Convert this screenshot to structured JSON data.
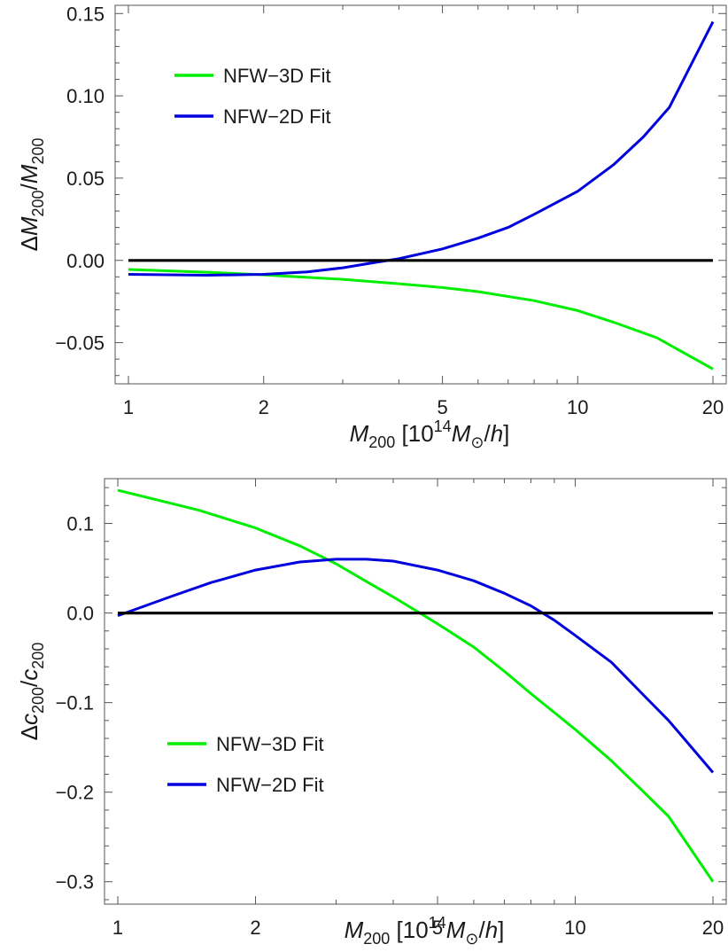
{
  "chart_data": [
    {
      "type": "line",
      "x_scale": "log",
      "xlim": [
        1,
        20
      ],
      "ylim": [
        -0.075,
        0.155
      ],
      "x_ticks": [
        1,
        2,
        5,
        10,
        20
      ],
      "x_tick_labels": [
        "1",
        "2",
        "5",
        "10",
        "20"
      ],
      "y_ticks": [
        -0.05,
        0.0,
        0.05,
        0.1,
        0.15
      ],
      "y_tick_labels": [
        "−0.05",
        "0.00",
        "0.05",
        "0.10",
        "0.15"
      ],
      "xlabel": {
        "main": "M",
        "sub": "200",
        "open": " [10",
        "sup": "14",
        "unit_main": "M",
        "unit_sub": "⊙",
        "tail": "/h]"
      },
      "ylabel": {
        "delta": "Δ",
        "num": "M",
        "num_sub": "200",
        "slash": "/",
        "den": "M",
        "den_sub": "200"
      },
      "legend": {
        "placement": "top-left"
      },
      "series": [
        {
          "name": "NFW−3D Fit",
          "color": "#00ee00",
          "x": [
            1,
            1.5,
            2,
            3,
            4,
            5,
            6,
            8,
            10,
            12,
            15,
            20
          ],
          "y": [
            -0.0055,
            -0.0072,
            -0.0088,
            -0.0115,
            -0.0142,
            -0.0165,
            -0.019,
            -0.0245,
            -0.0305,
            -0.0375,
            -0.047,
            -0.066
          ]
        },
        {
          "name": "NFW−2D Fit",
          "color": "#0000dd",
          "x": [
            1,
            1.5,
            2,
            2.5,
            3,
            3.5,
            4,
            5,
            6,
            7,
            8,
            10,
            12,
            14,
            16,
            20
          ],
          "y": [
            -0.0085,
            -0.009,
            -0.0085,
            -0.007,
            -0.0045,
            -0.0015,
            0.001,
            0.007,
            0.0135,
            0.02,
            0.028,
            0.042,
            0.058,
            0.075,
            0.093,
            0.145
          ]
        },
        {
          "name": "",
          "color": "#000000",
          "x": [
            1,
            20
          ],
          "y": [
            0,
            0
          ]
        }
      ]
    },
    {
      "type": "line",
      "x_scale": "log",
      "xlim": [
        1,
        20
      ],
      "ylim": [
        -0.325,
        0.15
      ],
      "x_ticks": [
        1,
        2,
        5,
        10,
        20
      ],
      "x_tick_labels": [
        "1",
        "2",
        "5",
        "10",
        "20"
      ],
      "y_ticks": [
        -0.3,
        -0.2,
        -0.1,
        0.0,
        0.1
      ],
      "y_tick_labels": [
        "−0.3",
        "−0.2",
        "−0.1",
        "0.0",
        "0.1"
      ],
      "xlabel": {
        "main": "M",
        "sub": "200",
        "open": " [10",
        "sup": "14",
        "unit_main": "M",
        "unit_sub": "⊙",
        "tail": "/h]"
      },
      "ylabel": {
        "delta": "Δ",
        "num": "c",
        "num_sub": "200",
        "slash": "/",
        "den": "c",
        "den_sub": "200"
      },
      "legend": {
        "placement": "bottom-left"
      },
      "series": [
        {
          "name": "NFW−3D Fit",
          "color": "#00ee00",
          "x": [
            1,
            1.5,
            2,
            2.5,
            3,
            3.5,
            4,
            5,
            6,
            7,
            8,
            10,
            12,
            14,
            16,
            20
          ],
          "y": [
            0.137,
            0.115,
            0.095,
            0.075,
            0.055,
            0.035,
            0.018,
            -0.012,
            -0.038,
            -0.065,
            -0.09,
            -0.13,
            -0.165,
            -0.198,
            -0.227,
            -0.3
          ]
        },
        {
          "name": "NFW−2D Fit",
          "color": "#0000dd",
          "x": [
            1,
            1.3,
            1.6,
            2,
            2.5,
            3,
            3.5,
            4,
            5,
            6,
            7,
            8,
            9,
            10,
            12,
            14,
            16,
            20
          ],
          "y": [
            -0.003,
            0.018,
            0.034,
            0.048,
            0.057,
            0.06,
            0.06,
            0.058,
            0.048,
            0.036,
            0.022,
            0.008,
            -0.008,
            -0.025,
            -0.055,
            -0.09,
            -0.12,
            -0.178
          ]
        },
        {
          "name": "",
          "color": "#000000",
          "x": [
            1,
            20
          ],
          "y": [
            0,
            0
          ]
        }
      ]
    }
  ]
}
